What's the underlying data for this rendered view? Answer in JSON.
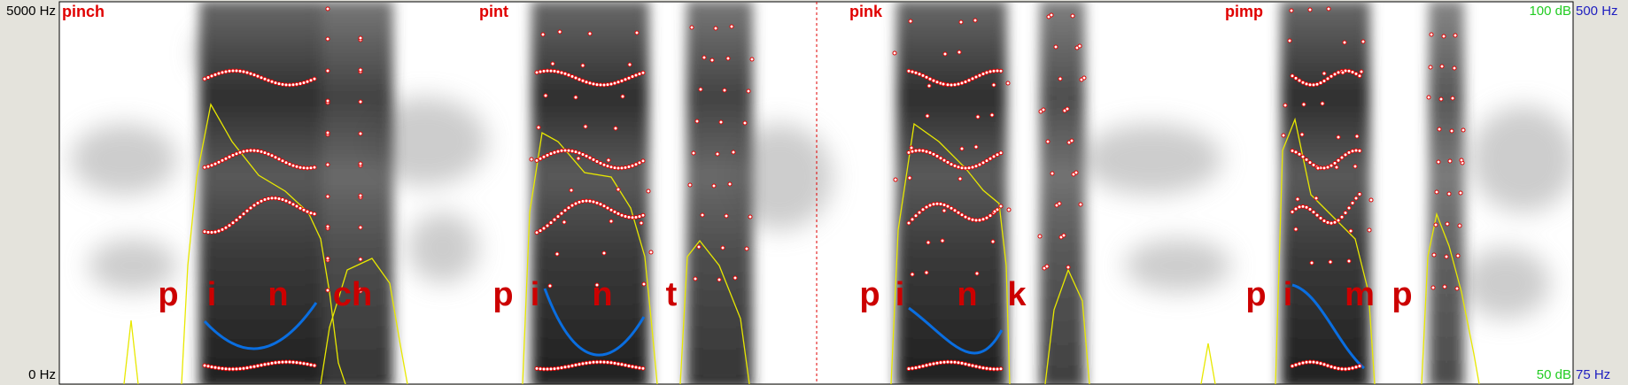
{
  "axes": {
    "left_top": "5000 Hz",
    "left_bottom": "0 Hz",
    "right_top_db": "100 dB",
    "right_top_hz": "500 Hz",
    "right_bottom_db": "50 dB",
    "right_bottom_hz": "75 Hz"
  },
  "words": [
    "pinch",
    "pint",
    "pink",
    "pimp"
  ],
  "segments": [
    [
      "p",
      "i",
      "n",
      "ch"
    ],
    [
      "p",
      "i",
      "n",
      "t"
    ],
    [
      "p",
      "i",
      "n",
      "k"
    ],
    [
      "p",
      "i",
      "m",
      "p"
    ]
  ]
}
